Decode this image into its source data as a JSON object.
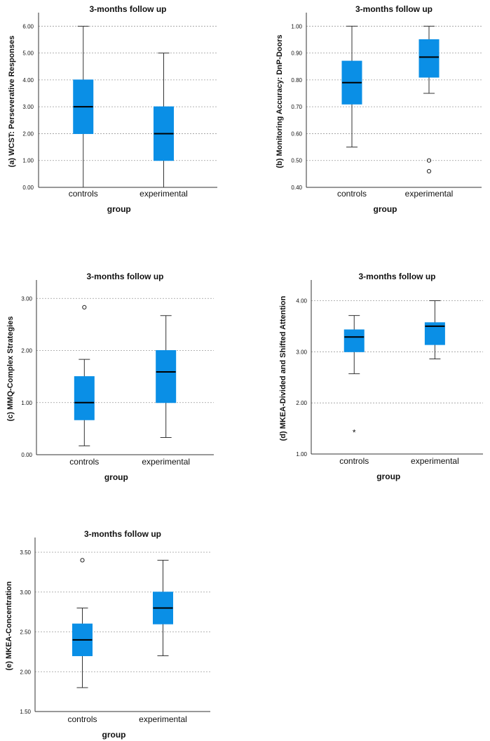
{
  "chart_data": [
    {
      "type": "boxplot",
      "title": "3-months follow up",
      "ylabel": "(a) WCST: Perseverative Responses",
      "xlabel": "group",
      "categories": [
        "controls",
        "experimental"
      ],
      "ylim": [
        0,
        6.4
      ],
      "yticks": [
        "0.00",
        "1.00",
        "2.00",
        "3.00",
        "4.00",
        "5.00",
        "6.00"
      ],
      "grid": "horizontal dashed",
      "box_color": "#0a8fe6",
      "boxes": [
        {
          "min": 0,
          "q1": 2,
          "median": 3,
          "q3": 4,
          "max": 6,
          "outliers": []
        },
        {
          "min": 0,
          "q1": 1,
          "median": 2,
          "q3": 3,
          "max": 5,
          "outliers": []
        }
      ]
    },
    {
      "type": "boxplot",
      "title": "3-months follow up",
      "ylabel": "(b) Monitoring Accuracy: DnP-Doors",
      "xlabel": "group",
      "categories": [
        "controls",
        "experimental"
      ],
      "ylim": [
        0.4,
        1.04
      ],
      "yticks": [
        "0.40",
        "0.50",
        "0.60",
        "0.70",
        "0.80",
        "0.90",
        "1.00"
      ],
      "grid": "horizontal dashed",
      "box_color": "#0a8fe6",
      "boxes": [
        {
          "min": 0.55,
          "q1": 0.71,
          "median": 0.79,
          "q3": 0.87,
          "max": 1.0,
          "outliers": []
        },
        {
          "min": 0.75,
          "q1": 0.81,
          "median": 0.885,
          "q3": 0.95,
          "max": 1.0,
          "outliers": [
            0.5,
            0.46
          ]
        }
      ]
    },
    {
      "type": "boxplot",
      "title": "3-months follow up",
      "ylabel": "(c) MMQ-Complex Strategies",
      "xlabel": "group",
      "categories": [
        "controls",
        "experimental"
      ],
      "ylim": [
        0,
        3.3
      ],
      "yticks": [
        "0.00",
        "1.00",
        "2.00",
        "3.00"
      ],
      "grid": "horizontal dashed",
      "box_color": "#0a8fe6",
      "boxes": [
        {
          "min": 0.17,
          "q1": 0.67,
          "median": 1.0,
          "q3": 1.5,
          "max": 1.83,
          "outliers": [
            2.83
          ]
        },
        {
          "min": 0.33,
          "q1": 1.0,
          "median": 1.59,
          "q3": 2.0,
          "max": 2.67,
          "outliers": []
        }
      ]
    },
    {
      "type": "boxplot",
      "title": "3-months follow up",
      "ylabel": "(d) MKEA-Divided and Shifted Attention",
      "xlabel": "group",
      "categories": [
        "controls",
        "experimental"
      ],
      "ylim": [
        1.0,
        4.35
      ],
      "yticks": [
        "1.00",
        "2.00",
        "3.00",
        "4.00"
      ],
      "grid": "horizontal dashed",
      "box_color": "#0a8fe6",
      "boxes": [
        {
          "min": 2.57,
          "q1": 3.0,
          "median": 3.29,
          "q3": 3.43,
          "max": 3.71,
          "outliers": [],
          "extremes": [
            1.43
          ]
        },
        {
          "min": 2.86,
          "q1": 3.14,
          "median": 3.5,
          "q3": 3.57,
          "max": 4.0,
          "outliers": []
        }
      ]
    },
    {
      "type": "boxplot",
      "title": "3-months follow up",
      "ylabel": "(e) MKEA-Concentration",
      "xlabel": "group",
      "categories": [
        "controls",
        "experimental"
      ],
      "ylim": [
        1.5,
        3.65
      ],
      "yticks": [
        "1.50",
        "2.00",
        "2.50",
        "3.00",
        "3.50"
      ],
      "grid": "horizontal dashed",
      "box_color": "#0a8fe6",
      "boxes": [
        {
          "min": 1.8,
          "q1": 2.2,
          "median": 2.4,
          "q3": 2.6,
          "max": 2.8,
          "outliers": [
            3.4
          ]
        },
        {
          "min": 2.2,
          "q1": 2.6,
          "median": 2.8,
          "q3": 3.0,
          "max": 3.4,
          "outliers": []
        }
      ]
    }
  ]
}
